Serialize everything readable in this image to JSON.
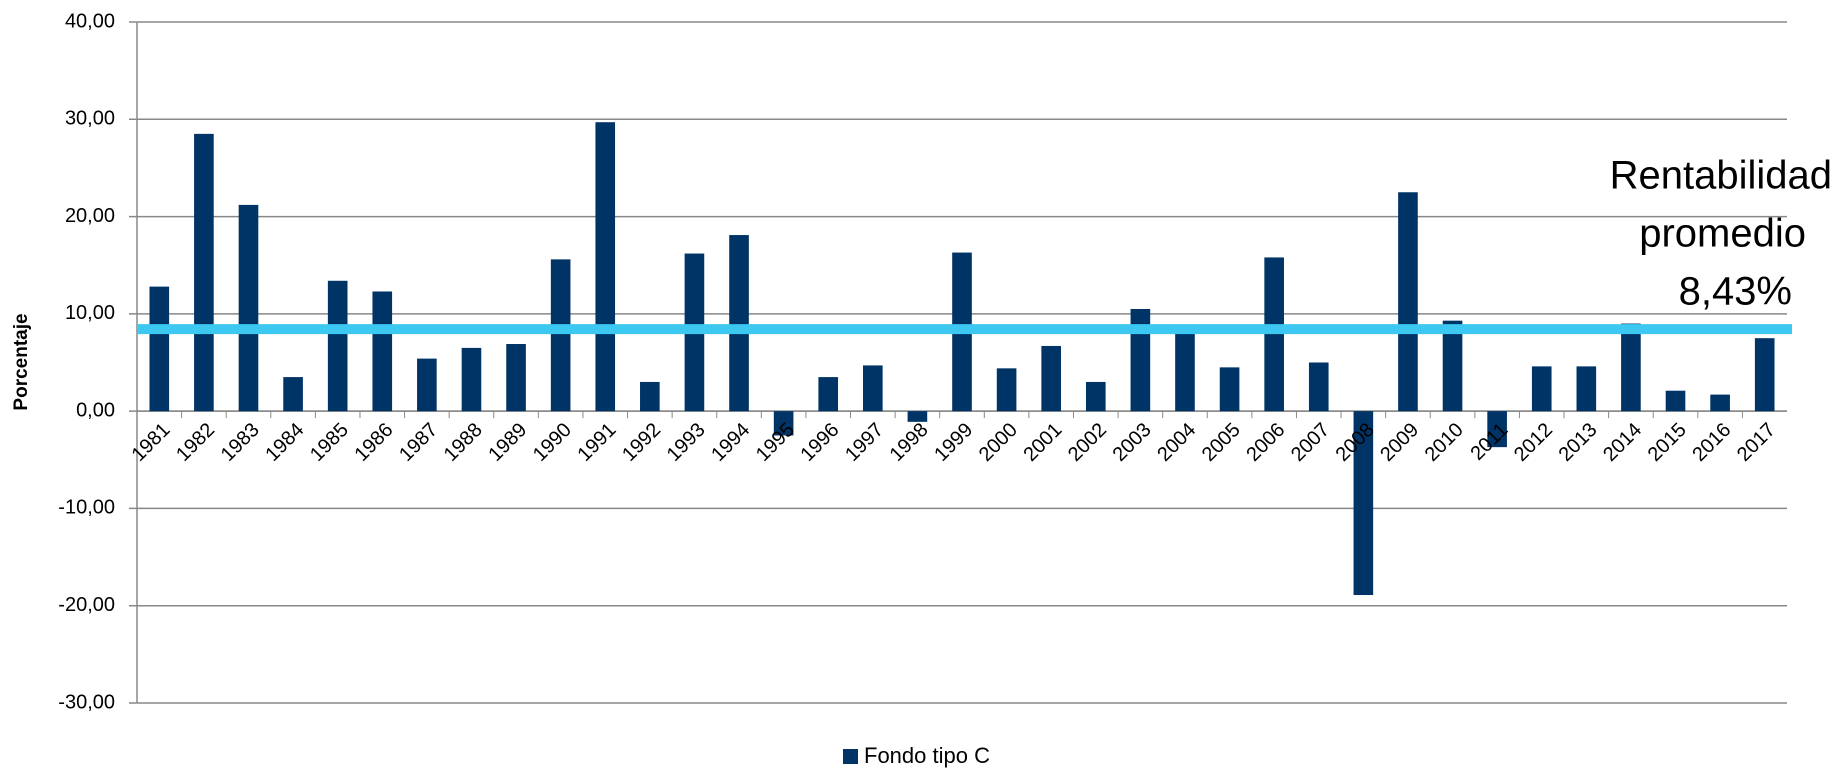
{
  "chart_data": {
    "type": "bar",
    "y_label": "Porcentaje",
    "categories": [
      "1981",
      "1982",
      "1983",
      "1984",
      "1985",
      "1986",
      "1987",
      "1988",
      "1989",
      "1990",
      "1991",
      "1992",
      "1993",
      "1994",
      "1995",
      "1996",
      "1997",
      "1998",
      "1999",
      "2000",
      "2001",
      "2002",
      "2003",
      "2004",
      "2005",
      "2006",
      "2007",
      "2008",
      "2009",
      "2010",
      "2011",
      "2012",
      "2013",
      "2014",
      "2015",
      "2016",
      "2017"
    ],
    "series": [
      {
        "name": "Fondo tipo C",
        "color": "#003366",
        "values": [
          12.8,
          28.5,
          21.2,
          3.5,
          13.4,
          12.3,
          5.4,
          6.5,
          6.9,
          15.6,
          29.7,
          3.0,
          16.2,
          18.1,
          -2.5,
          3.5,
          4.7,
          -1.1,
          16.3,
          4.4,
          6.7,
          3.0,
          10.5,
          8.9,
          4.5,
          15.8,
          5.0,
          -18.9,
          22.5,
          9.3,
          -3.7,
          4.6,
          4.6,
          9.0,
          2.1,
          1.7,
          7.5
        ]
      }
    ],
    "reference_line": {
      "value": 8.43,
      "color": "#3cc8f0",
      "annotation": [
        "Rentabilidad",
        "promedio",
        "8,43%"
      ]
    },
    "ylim": [
      -30,
      40
    ],
    "yticks": [
      {
        "value": -30,
        "label": "-30,00"
      },
      {
        "value": -20,
        "label": "-20,00"
      },
      {
        "value": -10,
        "label": "-10,00"
      },
      {
        "value": 0,
        "label": "0,00"
      },
      {
        "value": 10,
        "label": "10,00"
      },
      {
        "value": 20,
        "label": "20,00"
      },
      {
        "value": 30,
        "label": "30,00"
      },
      {
        "value": 40,
        "label": "40,00"
      }
    ],
    "grid": true,
    "legend": "bottom"
  }
}
